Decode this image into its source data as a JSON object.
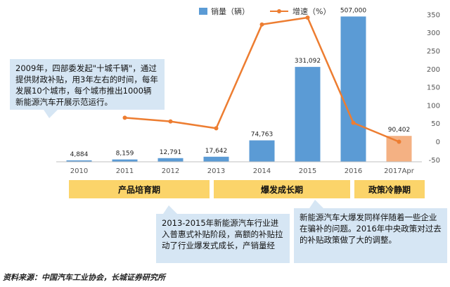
{
  "chart_data": {
    "type": "bar",
    "categories": [
      "2010",
      "2011",
      "2012",
      "2013",
      "2014",
      "2015",
      "2016",
      "2017Apr"
    ],
    "series": [
      {
        "name": "销量（辆）",
        "kind": "bar",
        "axis": "left",
        "values": [
          4884,
          8159,
          12791,
          17642,
          74763,
          331092,
          507000,
          90402
        ],
        "labels": [
          "4,884",
          "8,159",
          "12,791",
          "17,642",
          "74,763",
          "331,092",
          "507,000",
          "90,402"
        ],
        "color": "#5b9bd5",
        "highlight_color": "#f4b183"
      },
      {
        "name": "增速（%）",
        "kind": "line",
        "axis": "right",
        "values": [
          null,
          67,
          57,
          38,
          324,
          343,
          53,
          1
        ],
        "color": "#ed7d31"
      }
    ],
    "ylim_left": [
      0,
      540000
    ],
    "ylim_right": [
      -50,
      400
    ],
    "right_ticks": [
      -50,
      0,
      50,
      100,
      150,
      200,
      250,
      300,
      350,
      400
    ],
    "legend_position": "top",
    "grid": false
  },
  "phases": [
    {
      "label": "产品培育期",
      "color": "#fbd46a"
    },
    {
      "label": "爆发成长期",
      "color": "#fbd46a"
    },
    {
      "label": "政策冷静期",
      "color": "#fbd46a"
    }
  ],
  "notes": {
    "n2009": "2009年，四部委发起\"十城千辆\"，通过提供财政补贴，用3年左右的时间，每年发展10个城市，每个城市推出1000辆新能源汽车开展示范运行。",
    "n2013": "2013-2015年新能源汽车行业进入普惠式补贴阶段，高额的补贴拉动了行业爆发式成长，产销量经",
    "n2016": "新能源汽车大爆发同样伴随着一些企业在骗补的问题。2016年中央政策对过去的补贴政策做了大的调整。"
  },
  "source": "资料来源：中国汽车工业协会，长城证券研究所"
}
